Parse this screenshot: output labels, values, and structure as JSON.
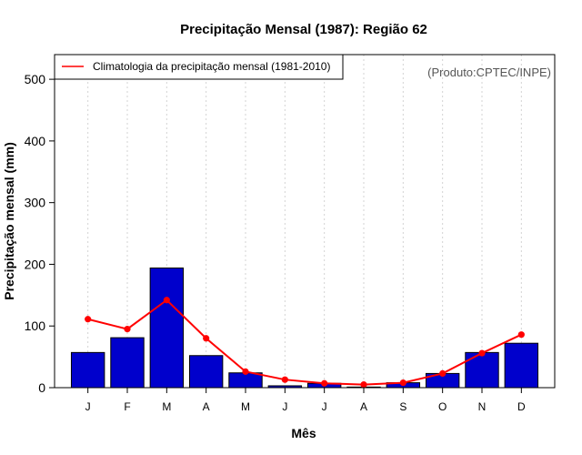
{
  "chart_data": {
    "type": "bar",
    "title": "Precipitação Mensal (1987): Região 62",
    "xlabel": "Mês",
    "ylabel": "Precipitação mensal (mm)",
    "categories": [
      "J",
      "F",
      "M",
      "A",
      "M",
      "J",
      "J",
      "A",
      "S",
      "O",
      "N",
      "D"
    ],
    "ylim": [
      0,
      540
    ],
    "yticks": [
      0,
      100,
      200,
      300,
      400,
      500
    ],
    "series": [
      {
        "name": "Precipitação mensal (1987)",
        "type": "bar",
        "color": "#0000cc",
        "values": [
          57,
          81,
          194,
          52,
          24,
          3,
          7,
          1,
          8,
          23,
          57,
          72
        ]
      },
      {
        "name": "Climatologia da precipitação mensal (1981-2010)",
        "type": "line",
        "color": "#ff0000",
        "values": [
          111,
          95,
          142,
          80,
          26,
          13,
          7,
          5,
          8,
          23,
          56,
          86
        ]
      }
    ],
    "legend": {
      "label": "Climatologia da precipitação mensal (1981-2010)",
      "position": "top-left"
    },
    "source_note": "(Produto:CPTEC/INPE)",
    "grid": "vertical dotted"
  }
}
